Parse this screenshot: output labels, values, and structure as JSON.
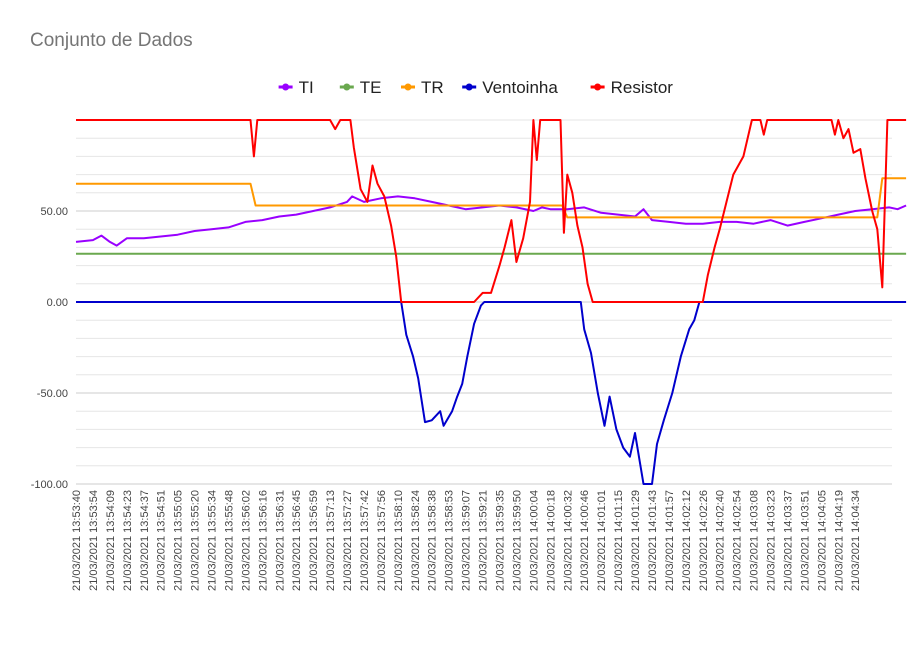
{
  "chart_data": {
    "type": "line",
    "title": "Conjunto de Dados",
    "xlabel": "",
    "ylabel": "",
    "ylim": [
      -100,
      100
    ],
    "yticks": [
      -100,
      -50,
      0,
      50
    ],
    "ytick_labels": [
      "-100.00",
      "-50.00",
      "0.00",
      "50.00"
    ],
    "grid": true,
    "legend_position": "top",
    "x_tick_labels": [
      "21/03/2021 13:53:40",
      "21/03/2021 13:53:54",
      "21/03/2021 13:54:09",
      "21/03/2021 13:54:23",
      "21/03/2021 13:54:37",
      "21/03/2021 13:54:51",
      "21/03/2021 13:55:05",
      "21/03/2021 13:55:20",
      "21/03/2021 13:55:34",
      "21/03/2021 13:55:48",
      "21/03/2021 13:56:02",
      "21/03/2021 13:56:16",
      "21/03/2021 13:56:31",
      "21/03/2021 13:56:45",
      "21/03/2021 13:56:59",
      "21/03/2021 13:57:13",
      "21/03/2021 13:57:27",
      "21/03/2021 13:57:42",
      "21/03/2021 13:57:56",
      "21/03/2021 13:58:10",
      "21/03/2021 13:58:24",
      "21/03/2021 13:58:38",
      "21/03/2021 13:58:53",
      "21/03/2021 13:59:07",
      "21/03/2021 13:59:21",
      "21/03/2021 13:59:35",
      "21/03/2021 13:59:50",
      "21/03/2021 14:00:04",
      "21/03/2021 14:00:18",
      "21/03/2021 14:00:32",
      "21/03/2021 14:00:46",
      "21/03/2021 14:01:01",
      "21/03/2021 14:01:15",
      "21/03/2021 14:01:29",
      "21/03/2021 14:01:43",
      "21/03/2021 14:01:57",
      "21/03/2021 14:02:12",
      "21/03/2021 14:02:26",
      "21/03/2021 14:02:40",
      "21/03/2021 14:02:54",
      "21/03/2021 14:03:08",
      "21/03/2021 14:03:23",
      "21/03/2021 14:03:37",
      "21/03/2021 14:03:51",
      "21/03/2021 14:04:05",
      "21/03/2021 14:04:19",
      "21/03/2021 14:04:34"
    ],
    "series": [
      {
        "name": "TI",
        "color": "#9900ff",
        "points": [
          [
            0,
            33
          ],
          [
            1,
            34
          ],
          [
            1.5,
            36.5
          ],
          [
            2,
            33
          ],
          [
            2.4,
            31
          ],
          [
            3,
            35
          ],
          [
            4,
            35
          ],
          [
            5,
            36
          ],
          [
            6,
            37
          ],
          [
            7,
            39
          ],
          [
            8,
            40
          ],
          [
            9,
            41
          ],
          [
            10,
            44
          ],
          [
            11,
            45
          ],
          [
            12,
            47
          ],
          [
            13,
            48
          ],
          [
            14,
            50
          ],
          [
            15,
            52
          ],
          [
            16,
            55
          ],
          [
            16.3,
            58
          ],
          [
            17,
            55
          ],
          [
            18,
            57
          ],
          [
            19,
            58
          ],
          [
            20,
            57
          ],
          [
            21,
            55
          ],
          [
            22,
            53
          ],
          [
            23,
            51
          ],
          [
            24,
            52
          ],
          [
            25,
            53
          ],
          [
            26,
            52
          ],
          [
            27,
            50
          ],
          [
            27.5,
            52
          ],
          [
            28,
            51
          ],
          [
            29,
            51
          ],
          [
            30,
            52
          ],
          [
            31,
            49
          ],
          [
            32,
            48
          ],
          [
            33,
            47
          ],
          [
            33.5,
            51
          ],
          [
            34,
            45
          ],
          [
            35,
            44
          ],
          [
            36,
            43
          ],
          [
            37,
            43
          ],
          [
            38,
            44
          ],
          [
            39,
            44
          ],
          [
            40,
            43
          ],
          [
            41,
            45
          ],
          [
            42,
            42
          ],
          [
            43,
            44
          ],
          [
            44,
            46
          ],
          [
            45,
            48
          ],
          [
            46,
            50
          ],
          [
            47,
            51
          ],
          [
            48,
            52
          ],
          [
            48.5,
            51
          ],
          [
            49,
            53
          ]
        ]
      },
      {
        "name": "TE",
        "color": "#6aa84f",
        "points": [
          [
            0,
            26.5
          ],
          [
            49,
            26.5
          ]
        ]
      },
      {
        "name": "TR",
        "color": "#ff9900",
        "points": [
          [
            0,
            65
          ],
          [
            10.3,
            65
          ],
          [
            10.6,
            53
          ],
          [
            28.7,
            53
          ],
          [
            29,
            46.5
          ],
          [
            47.3,
            46.5
          ],
          [
            47.6,
            68
          ],
          [
            49,
            68
          ]
        ]
      },
      {
        "name": "Ventoinha",
        "color": "#0000cc",
        "points": [
          [
            0,
            0
          ],
          [
            19.2,
            0
          ],
          [
            19.5,
            -18
          ],
          [
            19.9,
            -30
          ],
          [
            20.2,
            -42
          ],
          [
            20.6,
            -66
          ],
          [
            21,
            -65
          ],
          [
            21.5,
            -60
          ],
          [
            21.7,
            -68
          ],
          [
            22.2,
            -60
          ],
          [
            22.5,
            -52
          ],
          [
            22.8,
            -45
          ],
          [
            23.1,
            -30
          ],
          [
            23.5,
            -12
          ],
          [
            23.9,
            -2
          ],
          [
            24.1,
            0
          ],
          [
            29.8,
            0
          ],
          [
            30.0,
            -15
          ],
          [
            30.4,
            -28
          ],
          [
            30.8,
            -50
          ],
          [
            31.2,
            -68
          ],
          [
            31.5,
            -52
          ],
          [
            31.9,
            -70
          ],
          [
            32.3,
            -80
          ],
          [
            32.7,
            -85
          ],
          [
            33.0,
            -72
          ],
          [
            33.5,
            -100
          ],
          [
            34,
            -100
          ],
          [
            34.3,
            -78
          ],
          [
            34.7,
            -65
          ],
          [
            35.2,
            -50
          ],
          [
            35.7,
            -30
          ],
          [
            36.2,
            -15
          ],
          [
            36.5,
            -10
          ],
          [
            36.8,
            0
          ],
          [
            49,
            0
          ]
        ]
      },
      {
        "name": "Resistor",
        "color": "#ff0000",
        "points": [
          [
            0,
            100
          ],
          [
            10.3,
            100
          ],
          [
            10.5,
            80
          ],
          [
            10.7,
            100
          ],
          [
            15,
            100
          ],
          [
            15.3,
            95
          ],
          [
            15.6,
            100
          ],
          [
            16.2,
            100
          ],
          [
            16.4,
            85
          ],
          [
            16.8,
            62
          ],
          [
            17.2,
            55
          ],
          [
            17.5,
            75
          ],
          [
            17.8,
            65
          ],
          [
            18.2,
            58
          ],
          [
            18.6,
            42
          ],
          [
            18.9,
            25
          ],
          [
            19.2,
            0
          ],
          [
            23.5,
            0
          ],
          [
            24.0,
            5
          ],
          [
            24.5,
            5
          ],
          [
            25.0,
            20
          ],
          [
            25.3,
            30
          ],
          [
            25.7,
            45
          ],
          [
            26.0,
            22
          ],
          [
            26.4,
            35
          ],
          [
            26.8,
            55
          ],
          [
            27.0,
            100
          ],
          [
            27.2,
            78
          ],
          [
            27.4,
            100
          ],
          [
            28.6,
            100
          ],
          [
            28.8,
            38
          ],
          [
            29.0,
            70
          ],
          [
            29.3,
            60
          ],
          [
            29.6,
            42
          ],
          [
            29.9,
            30
          ],
          [
            30.2,
            10
          ],
          [
            30.5,
            0
          ],
          [
            37.0,
            0
          ],
          [
            37.3,
            15
          ],
          [
            37.7,
            30
          ],
          [
            38.0,
            40
          ],
          [
            38.4,
            55
          ],
          [
            38.8,
            70
          ],
          [
            39.4,
            80
          ],
          [
            39.9,
            100
          ],
          [
            40.4,
            100
          ],
          [
            40.6,
            92
          ],
          [
            40.8,
            100
          ],
          [
            44.6,
            100
          ],
          [
            44.8,
            92
          ],
          [
            45.0,
            100
          ],
          [
            45.3,
            90
          ],
          [
            45.6,
            95
          ],
          [
            45.9,
            82
          ],
          [
            46.3,
            84
          ],
          [
            46.6,
            68
          ],
          [
            47.0,
            50
          ],
          [
            47.3,
            40
          ],
          [
            47.6,
            8
          ],
          [
            47.9,
            100
          ],
          [
            49,
            100
          ]
        ]
      }
    ]
  }
}
